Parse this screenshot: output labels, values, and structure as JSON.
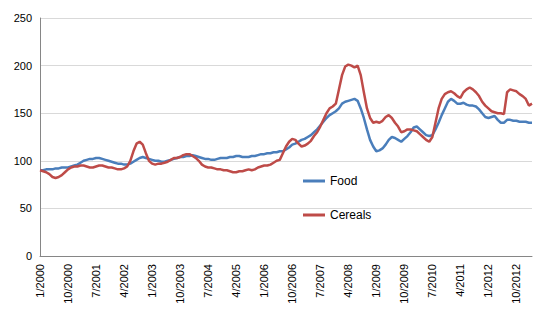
{
  "chart_data": {
    "type": "line",
    "categories": [
      "1/2000",
      null,
      null,
      null,
      null,
      null,
      null,
      null,
      null,
      "10/2000",
      null,
      null,
      null,
      null,
      null,
      null,
      null,
      null,
      "7/2001",
      null,
      null,
      null,
      null,
      null,
      null,
      null,
      null,
      "4/2002",
      null,
      null,
      null,
      null,
      null,
      null,
      null,
      null,
      "1/2003",
      null,
      null,
      null,
      null,
      null,
      null,
      null,
      null,
      "10/2003",
      null,
      null,
      null,
      null,
      null,
      null,
      null,
      null,
      "7/2004",
      null,
      null,
      null,
      null,
      null,
      null,
      null,
      null,
      "4/2005",
      null,
      null,
      null,
      null,
      null,
      null,
      null,
      null,
      "1/2006",
      null,
      null,
      null,
      null,
      null,
      null,
      null,
      null,
      "10/2006",
      null,
      null,
      null,
      null,
      null,
      null,
      null,
      null,
      "7/2007",
      null,
      null,
      null,
      null,
      null,
      null,
      null,
      null,
      "4/2008",
      null,
      null,
      null,
      null,
      null,
      null,
      null,
      null,
      "1/2009",
      null,
      null,
      null,
      null,
      null,
      null,
      null,
      null,
      "10/2009",
      null,
      null,
      null,
      null,
      null,
      null,
      null,
      null,
      "7/2010",
      null,
      null,
      null,
      null,
      null,
      null,
      null,
      null,
      "4/2011",
      null,
      null,
      null,
      null,
      null,
      null,
      null,
      null,
      "1/2012",
      null,
      null,
      null,
      null,
      null,
      null,
      null,
      null,
      "10/2012",
      null,
      null,
      null,
      null,
      null
    ],
    "series": [
      {
        "name": "Food",
        "color": "#4a7ebb",
        "values": [
          90,
          90,
          91,
          91,
          91,
          92,
          92,
          93,
          93,
          93,
          94,
          95,
          96,
          98,
          100,
          101,
          102,
          102,
          103,
          103,
          102,
          101,
          100,
          99,
          98,
          97,
          97,
          96,
          96,
          97,
          99,
          101,
          103,
          104,
          103,
          102,
          101,
          100,
          100,
          99,
          99,
          100,
          101,
          102,
          103,
          104,
          104,
          105,
          105,
          106,
          105,
          104,
          103,
          102,
          102,
          101,
          101,
          102,
          103,
          103,
          103,
          104,
          104,
          105,
          105,
          104,
          104,
          104,
          105,
          105,
          106,
          107,
          107,
          108,
          108,
          109,
          109,
          110,
          110,
          112,
          114,
          117,
          118,
          120,
          122,
          123,
          125,
          127,
          130,
          133,
          137,
          141,
          145,
          148,
          150,
          152,
          155,
          160,
          162,
          163,
          164,
          165,
          163,
          155,
          145,
          133,
          122,
          115,
          110,
          111,
          113,
          117,
          122,
          125,
          124,
          122,
          120,
          123,
          126,
          130,
          135,
          136,
          133,
          130,
          127,
          126,
          127,
          133,
          140,
          148,
          155,
          162,
          165,
          163,
          160,
          160,
          161,
          159,
          158,
          158,
          157,
          154,
          150,
          146,
          145,
          146,
          147,
          143,
          140,
          140,
          143,
          143,
          142,
          142,
          141,
          141,
          141,
          140,
          140
        ]
      },
      {
        "name": "Cereals",
        "color": "#be4b48",
        "values": [
          90,
          89,
          88,
          86,
          83,
          82,
          83,
          85,
          88,
          91,
          93,
          94,
          94,
          95,
          95,
          94,
          93,
          93,
          94,
          95,
          95,
          94,
          93,
          93,
          92,
          91,
          91,
          92,
          94,
          100,
          110,
          118,
          120,
          117,
          108,
          100,
          97,
          96,
          97,
          97,
          98,
          99,
          101,
          103,
          103,
          104,
          106,
          107,
          107,
          105,
          103,
          100,
          96,
          94,
          93,
          93,
          92,
          91,
          91,
          90,
          90,
          89,
          88,
          88,
          89,
          89,
          90,
          91,
          90,
          91,
          93,
          94,
          95,
          95,
          96,
          98,
          100,
          101,
          108,
          115,
          120,
          123,
          122,
          118,
          115,
          116,
          118,
          121,
          126,
          130,
          136,
          143,
          150,
          155,
          157,
          160,
          175,
          190,
          199,
          201,
          200,
          198,
          200,
          190,
          172,
          155,
          145,
          140,
          141,
          140,
          142,
          146,
          148,
          145,
          140,
          136,
          130,
          131,
          133,
          133,
          132,
          131,
          128,
          125,
          122,
          120,
          125,
          140,
          155,
          165,
          170,
          172,
          173,
          171,
          168,
          166,
          172,
          175,
          177,
          175,
          172,
          168,
          162,
          158,
          155,
          152,
          151,
          150,
          150,
          149,
          172,
          175,
          174,
          173,
          170,
          168,
          165,
          158,
          160
        ]
      }
    ],
    "ylim": [
      0,
      250
    ],
    "yticks": [
      0,
      50,
      100,
      150,
      200,
      250
    ],
    "grid": true,
    "legend": "right"
  }
}
